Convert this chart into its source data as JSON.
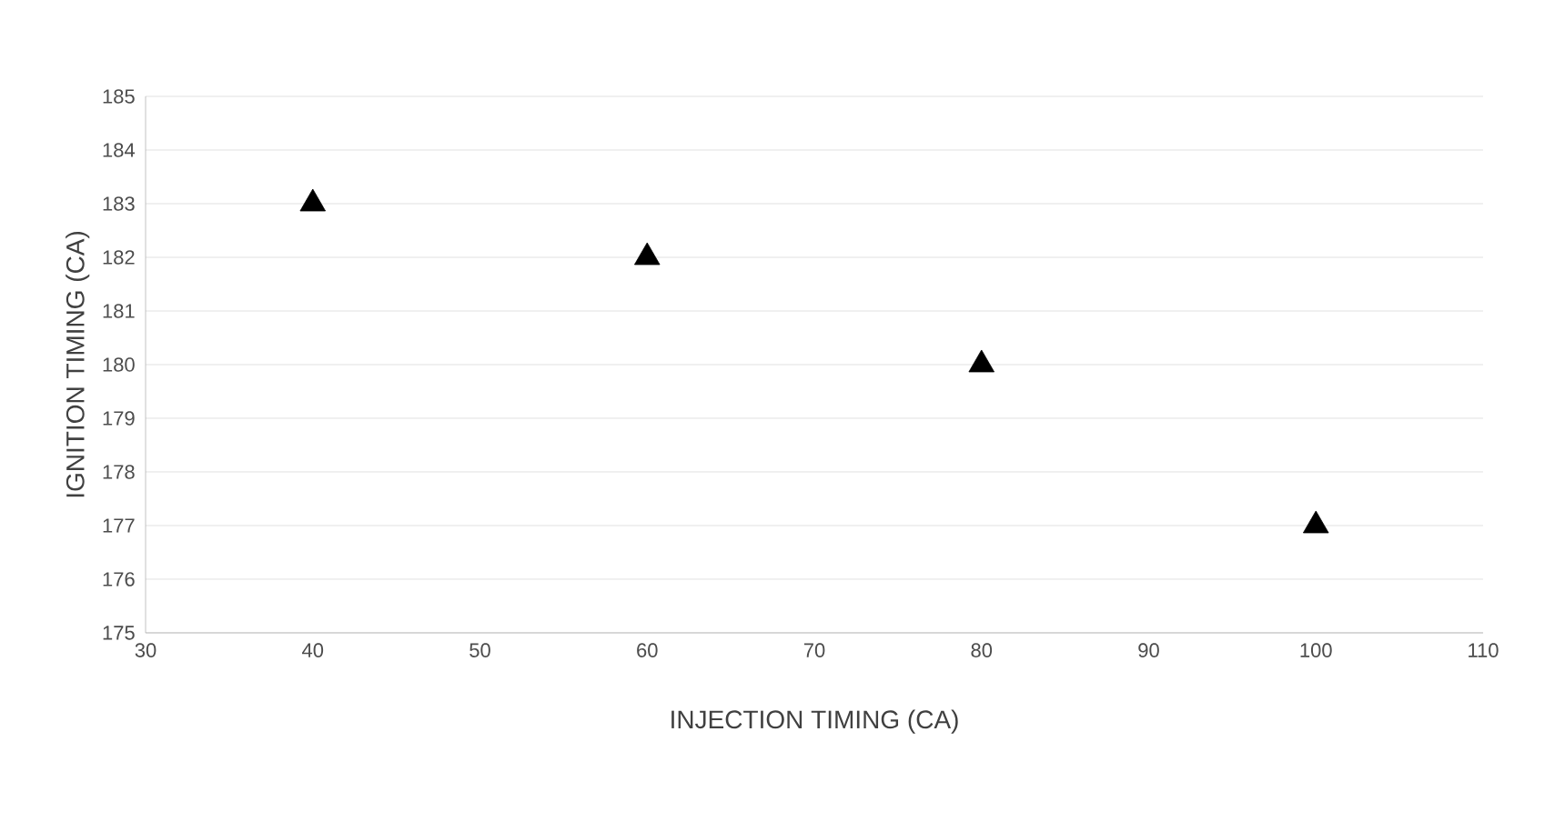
{
  "chart_data": {
    "type": "scatter",
    "xlabel": "INJECTION TIMING (CA)",
    "ylabel": "IGNITION TIMING (CA)",
    "x": [
      40,
      60,
      80,
      100
    ],
    "values": [
      183,
      182,
      180,
      177
    ],
    "color": "#000000",
    "marker": "triangle",
    "xlim": [
      30,
      110
    ],
    "xticks": [
      30,
      40,
      50,
      60,
      70,
      80,
      90,
      100,
      110
    ],
    "ylim": [
      175,
      185
    ],
    "yticks": [
      175,
      176,
      177,
      178,
      179,
      180,
      181,
      182,
      183,
      184,
      185
    ],
    "grid": "y"
  }
}
